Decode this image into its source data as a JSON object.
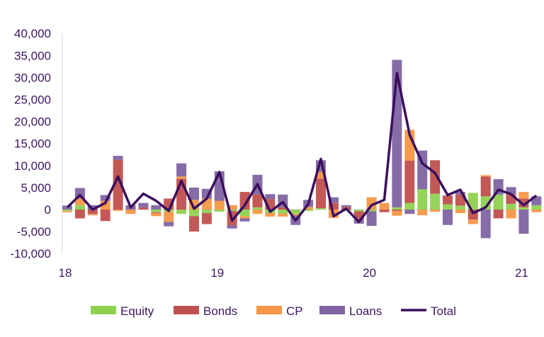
{
  "chart_data": {
    "type": "bar",
    "stacked": true,
    "title": "",
    "xlabel": "",
    "ylabel": "",
    "ylim": [
      -10000,
      40000
    ],
    "yticks": [
      -10000,
      -5000,
      0,
      5000,
      10000,
      15000,
      20000,
      25000,
      30000,
      35000,
      40000
    ],
    "ytick_labels": [
      "-10,000",
      "-5,000",
      "0",
      "5,000",
      "10,000",
      "15,000",
      "20,000",
      "25,000",
      "30,000",
      "35,000",
      "40,000"
    ],
    "xtick_labels": [
      {
        "label": "18",
        "month_index": 0
      },
      {
        "label": "19",
        "month_index": 12
      },
      {
        "label": "20",
        "month_index": 24
      },
      {
        "label": "21",
        "month_index": 36
      }
    ],
    "legend_position": "bottom",
    "series": [
      {
        "name": "Equity",
        "color": "#8fd14f",
        "values": [
          -300,
          1000,
          0,
          0,
          0,
          0,
          0,
          -600,
          -500,
          -1000,
          -1500,
          -800,
          -500,
          -300,
          -1500,
          500,
          -800,
          -900,
          -1000,
          -300,
          300,
          0,
          -300,
          -400,
          -400,
          0,
          500,
          1500,
          4600,
          3600,
          1200,
          900,
          3800,
          3000,
          3400,
          1300,
          500,
          1000
        ]
      },
      {
        "name": "Bonds",
        "color": "#c0504d",
        "values": [
          0,
          -2000,
          -1000,
          -2600,
          11300,
          0,
          500,
          -200,
          2500,
          7000,
          -3500,
          -2500,
          0,
          -3300,
          4000,
          3000,
          2400,
          500,
          0,
          0,
          6700,
          1500,
          600,
          -1800,
          0,
          -600,
          -300,
          9600,
          0,
          7600,
          2000,
          2500,
          -2300,
          4500,
          -2000,
          2200,
          2000,
          0
        ]
      },
      {
        "name": "CP",
        "color": "#f79646",
        "values": [
          -300,
          1500,
          -300,
          2000,
          -300,
          -1000,
          0,
          -700,
          -2300,
          500,
          2200,
          2500,
          2000,
          1000,
          -500,
          -1000,
          -800,
          -700,
          -300,
          600,
          1600,
          -1900,
          0,
          0,
          2800,
          1500,
          -1100,
          7000,
          -1300,
          -500,
          0,
          -800,
          -1000,
          300,
          0,
          -2000,
          1500,
          -600
        ]
      },
      {
        "name": "Loans",
        "color": "#8064a2",
        "values": [
          900,
          2400,
          1000,
          1300,
          900,
          1000,
          1000,
          1000,
          -1000,
          3000,
          2800,
          2200,
          6700,
          -700,
          -700,
          4400,
          1100,
          2900,
          -2200,
          1600,
          2600,
          1300,
          400,
          -1000,
          -3300,
          0,
          33500,
          -1000,
          8800,
          0,
          -3500,
          600,
          0,
          -6500,
          3500,
          1600,
          -5500,
          2000
        ]
      },
      {
        "name": "Total",
        "type": "line",
        "color": "#3b0f5e",
        "values": [
          500,
          3300,
          0,
          1500,
          7500,
          500,
          3600,
          2000,
          -300,
          6500,
          200,
          2500,
          8500,
          -2500,
          1000,
          5800,
          -500,
          1700,
          -2500,
          1200,
          11500,
          -1500,
          200,
          -2800,
          1000,
          2200,
          31000,
          17000,
          10500,
          8300,
          3300,
          4500,
          -800,
          500,
          4500,
          3500,
          1000,
          3200
        ]
      }
    ]
  }
}
